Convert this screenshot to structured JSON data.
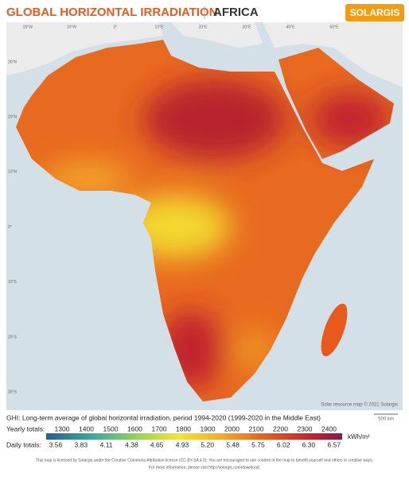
{
  "header": {
    "title": "GLOBAL HORIZONTAL IRRADIATION",
    "region": "AFRICA",
    "logo": "SOLARGIS"
  },
  "map": {
    "longitude_labels": [
      "20°W",
      "10°W",
      "0°",
      "10°E",
      "20°E",
      "30°E",
      "40°E",
      "50°E"
    ],
    "latitude_labels": [
      "30°N",
      "20°N",
      "10°N",
      "0°",
      "10°S",
      "20°S",
      "30°S"
    ],
    "credit": "Solar resource map © 2021 Solargis",
    "scale": "500 km"
  },
  "legend": {
    "caption": "GHI: Long-term average of global horizontal irradiation, period 1994-2020 (1999-2020 in the Middle East)",
    "yearly_label": "Yearly totals:",
    "yearly": [
      1300,
      1400,
      1500,
      1600,
      1700,
      1800,
      1900,
      2000,
      2100,
      2200,
      2300,
      2400
    ],
    "daily_label": "Daily totals:",
    "daily": [
      "3.56",
      "3.83",
      "4.11",
      "4.38",
      "4.65",
      "4.93",
      "5.20",
      "5.48",
      "5.75",
      "6.02",
      "6.30",
      "6.57"
    ],
    "unit": "kWh/m²"
  },
  "footer": {
    "license": "This map is licensed by Solargis under the Creative Commons Attribution license (CC BY-SA 4.0). You are encouraged to use content of the map to benefit yourself and others in creative ways.",
    "more": "For more information, please visit http://solargis.com/download."
  }
}
